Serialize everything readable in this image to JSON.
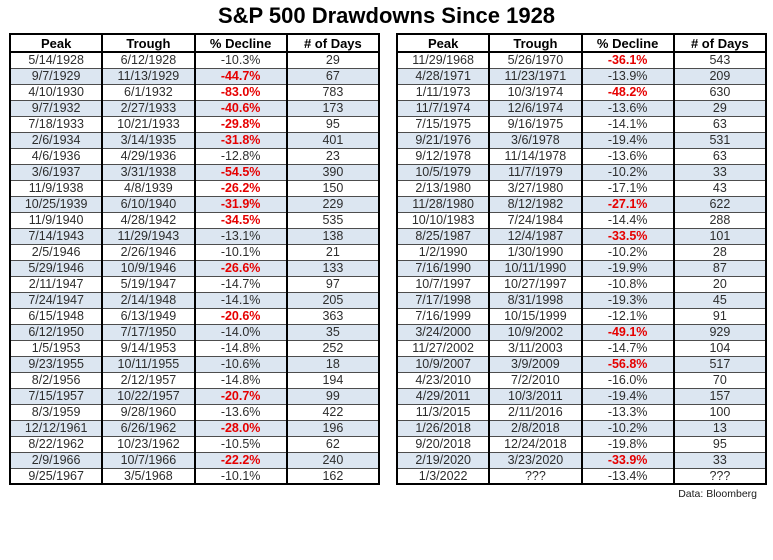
{
  "colors": {
    "decline_red": "#e60000",
    "row_shade_blue": "#dce6f1",
    "border_black": "#000000",
    "text_dark": "#2d2d2d"
  },
  "footer": {
    "source": "Data: Bloomberg"
  },
  "chart_data": {
    "type": "table",
    "title": "S&P 500 Drawdowns Since 1928",
    "columns": [
      "Peak",
      "Trough",
      "% Decline",
      "# of Days"
    ],
    "layout": {
      "two_side_by_side_tables": true,
      "shaded_rows": "every second row",
      "red_values": "larger drawdowns shown bold red"
    },
    "tables": [
      {
        "side": "left",
        "rows": [
          {
            "peak": "5/14/1928",
            "trough": "6/12/1928",
            "decline": "-10.3%",
            "days": "29",
            "decline_red": false
          },
          {
            "peak": "9/7/1929",
            "trough": "11/13/1929",
            "decline": "-44.7%",
            "days": "67",
            "decline_red": true
          },
          {
            "peak": "4/10/1930",
            "trough": "6/1/1932",
            "decline": "-83.0%",
            "days": "783",
            "decline_red": true
          },
          {
            "peak": "9/7/1932",
            "trough": "2/27/1933",
            "decline": "-40.6%",
            "days": "173",
            "decline_red": true
          },
          {
            "peak": "7/18/1933",
            "trough": "10/21/1933",
            "decline": "-29.8%",
            "days": "95",
            "decline_red": true
          },
          {
            "peak": "2/6/1934",
            "trough": "3/14/1935",
            "decline": "-31.8%",
            "days": "401",
            "decline_red": true
          },
          {
            "peak": "4/6/1936",
            "trough": "4/29/1936",
            "decline": "-12.8%",
            "days": "23",
            "decline_red": false
          },
          {
            "peak": "3/6/1937",
            "trough": "3/31/1938",
            "decline": "-54.5%",
            "days": "390",
            "decline_red": true
          },
          {
            "peak": "11/9/1938",
            "trough": "4/8/1939",
            "decline": "-26.2%",
            "days": "150",
            "decline_red": true
          },
          {
            "peak": "10/25/1939",
            "trough": "6/10/1940",
            "decline": "-31.9%",
            "days": "229",
            "decline_red": true
          },
          {
            "peak": "11/9/1940",
            "trough": "4/28/1942",
            "decline": "-34.5%",
            "days": "535",
            "decline_red": true
          },
          {
            "peak": "7/14/1943",
            "trough": "11/29/1943",
            "decline": "-13.1%",
            "days": "138",
            "decline_red": false
          },
          {
            "peak": "2/5/1946",
            "trough": "2/26/1946",
            "decline": "-10.1%",
            "days": "21",
            "decline_red": false
          },
          {
            "peak": "5/29/1946",
            "trough": "10/9/1946",
            "decline": "-26.6%",
            "days": "133",
            "decline_red": true
          },
          {
            "peak": "2/11/1947",
            "trough": "5/19/1947",
            "decline": "-14.7%",
            "days": "97",
            "decline_red": false
          },
          {
            "peak": "7/24/1947",
            "trough": "2/14/1948",
            "decline": "-14.1%",
            "days": "205",
            "decline_red": false
          },
          {
            "peak": "6/15/1948",
            "trough": "6/13/1949",
            "decline": "-20.6%",
            "days": "363",
            "decline_red": true
          },
          {
            "peak": "6/12/1950",
            "trough": "7/17/1950",
            "decline": "-14.0%",
            "days": "35",
            "decline_red": false
          },
          {
            "peak": "1/5/1953",
            "trough": "9/14/1953",
            "decline": "-14.8%",
            "days": "252",
            "decline_red": false
          },
          {
            "peak": "9/23/1955",
            "trough": "10/11/1955",
            "decline": "-10.6%",
            "days": "18",
            "decline_red": false
          },
          {
            "peak": "8/2/1956",
            "trough": "2/12/1957",
            "decline": "-14.8%",
            "days": "194",
            "decline_red": false
          },
          {
            "peak": "7/15/1957",
            "trough": "10/22/1957",
            "decline": "-20.7%",
            "days": "99",
            "decline_red": true
          },
          {
            "peak": "8/3/1959",
            "trough": "9/28/1960",
            "decline": "-13.6%",
            "days": "422",
            "decline_red": false
          },
          {
            "peak": "12/12/1961",
            "trough": "6/26/1962",
            "decline": "-28.0%",
            "days": "196",
            "decline_red": true
          },
          {
            "peak": "8/22/1962",
            "trough": "10/23/1962",
            "decline": "-10.5%",
            "days": "62",
            "decline_red": false
          },
          {
            "peak": "2/9/1966",
            "trough": "10/7/1966",
            "decline": "-22.2%",
            "days": "240",
            "decline_red": true
          },
          {
            "peak": "9/25/1967",
            "trough": "3/5/1968",
            "decline": "-10.1%",
            "days": "162",
            "decline_red": false
          }
        ]
      },
      {
        "side": "right",
        "rows": [
          {
            "peak": "11/29/1968",
            "trough": "5/26/1970",
            "decline": "-36.1%",
            "days": "543",
            "decline_red": true
          },
          {
            "peak": "4/28/1971",
            "trough": "11/23/1971",
            "decline": "-13.9%",
            "days": "209",
            "decline_red": false
          },
          {
            "peak": "1/11/1973",
            "trough": "10/3/1974",
            "decline": "-48.2%",
            "days": "630",
            "decline_red": true
          },
          {
            "peak": "11/7/1974",
            "trough": "12/6/1974",
            "decline": "-13.6%",
            "days": "29",
            "decline_red": false
          },
          {
            "peak": "7/15/1975",
            "trough": "9/16/1975",
            "decline": "-14.1%",
            "days": "63",
            "decline_red": false
          },
          {
            "peak": "9/21/1976",
            "trough": "3/6/1978",
            "decline": "-19.4%",
            "days": "531",
            "decline_red": false
          },
          {
            "peak": "9/12/1978",
            "trough": "11/14/1978",
            "decline": "-13.6%",
            "days": "63",
            "decline_red": false
          },
          {
            "peak": "10/5/1979",
            "trough": "11/7/1979",
            "decline": "-10.2%",
            "days": "33",
            "decline_red": false
          },
          {
            "peak": "2/13/1980",
            "trough": "3/27/1980",
            "decline": "-17.1%",
            "days": "43",
            "decline_red": false
          },
          {
            "peak": "11/28/1980",
            "trough": "8/12/1982",
            "decline": "-27.1%",
            "days": "622",
            "decline_red": true
          },
          {
            "peak": "10/10/1983",
            "trough": "7/24/1984",
            "decline": "-14.4%",
            "days": "288",
            "decline_red": false
          },
          {
            "peak": "8/25/1987",
            "trough": "12/4/1987",
            "decline": "-33.5%",
            "days": "101",
            "decline_red": true
          },
          {
            "peak": "1/2/1990",
            "trough": "1/30/1990",
            "decline": "-10.2%",
            "days": "28",
            "decline_red": false
          },
          {
            "peak": "7/16/1990",
            "trough": "10/11/1990",
            "decline": "-19.9%",
            "days": "87",
            "decline_red": false
          },
          {
            "peak": "10/7/1997",
            "trough": "10/27/1997",
            "decline": "-10.8%",
            "days": "20",
            "decline_red": false
          },
          {
            "peak": "7/17/1998",
            "trough": "8/31/1998",
            "decline": "-19.3%",
            "days": "45",
            "decline_red": false
          },
          {
            "peak": "7/16/1999",
            "trough": "10/15/1999",
            "decline": "-12.1%",
            "days": "91",
            "decline_red": false
          },
          {
            "peak": "3/24/2000",
            "trough": "10/9/2002",
            "decline": "-49.1%",
            "days": "929",
            "decline_red": true
          },
          {
            "peak": "11/27/2002",
            "trough": "3/11/2003",
            "decline": "-14.7%",
            "days": "104",
            "decline_red": false
          },
          {
            "peak": "10/9/2007",
            "trough": "3/9/2009",
            "decline": "-56.8%",
            "days": "517",
            "decline_red": true
          },
          {
            "peak": "4/23/2010",
            "trough": "7/2/2010",
            "decline": "-16.0%",
            "days": "70",
            "decline_red": false
          },
          {
            "peak": "4/29/2011",
            "trough": "10/3/2011",
            "decline": "-19.4%",
            "days": "157",
            "decline_red": false
          },
          {
            "peak": "11/3/2015",
            "trough": "2/11/2016",
            "decline": "-13.3%",
            "days": "100",
            "decline_red": false
          },
          {
            "peak": "1/26/2018",
            "trough": "2/8/2018",
            "decline": "-10.2%",
            "days": "13",
            "decline_red": false
          },
          {
            "peak": "9/20/2018",
            "trough": "12/24/2018",
            "decline": "-19.8%",
            "days": "95",
            "decline_red": false
          },
          {
            "peak": "2/19/2020",
            "trough": "3/23/2020",
            "decline": "-33.9%",
            "days": "33",
            "decline_red": true
          },
          {
            "peak": "1/3/2022",
            "trough": "???",
            "decline": "-13.4%",
            "days": "???",
            "decline_red": false
          }
        ]
      }
    ]
  }
}
